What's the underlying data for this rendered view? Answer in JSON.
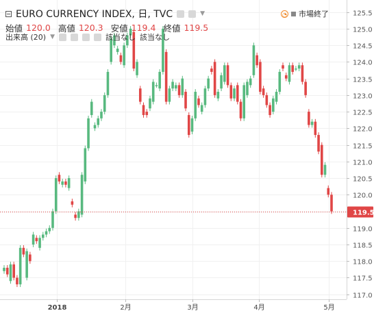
{
  "legend": {
    "symbol": "EURO CURRENCY INDEX, 日, TVC",
    "open_label": "始値",
    "open": "120.0",
    "high_label": "高値",
    "high": "120.3",
    "low_label": "安値",
    "low": "119.4",
    "close_label": "終値",
    "close": "119.5",
    "volume_label": "出来高 (20)",
    "na_1": "該当なし",
    "na_2": "該当なし"
  },
  "status": {
    "label": "市場終了"
  },
  "colors": {
    "up": "#58b97f",
    "down": "#e04646",
    "price_line": "#e04646",
    "grid": "#f0f0f0"
  },
  "chart_data": {
    "type": "candlestick",
    "y_ticks": [
      "125.5",
      "125.0",
      "124.5",
      "124.0",
      "123.5",
      "123.0",
      "122.5",
      "122.0",
      "121.5",
      "121.0",
      "120.5",
      "120.0",
      "119.5",
      "119.0",
      "118.5",
      "118.0",
      "117.5",
      "117.0"
    ],
    "x_ticks": [
      "2018",
      "2月",
      "3月",
      "4月",
      "5月"
    ],
    "ylim": [
      116.85,
      125.7
    ],
    "last_price": "119.5",
    "candles": [
      {
        "o": 117.7,
        "c": 117.8
      },
      {
        "o": 117.8,
        "c": 117.6
      },
      {
        "o": 117.4,
        "c": 117.9
      },
      {
        "o": 117.9,
        "c": 117.5
      },
      {
        "o": 117.5,
        "c": 117.3
      },
      {
        "o": 117.3,
        "c": 118.4
      },
      {
        "o": 118.4,
        "c": 118.2
      },
      {
        "o": 117.5,
        "c": 118.3
      },
      {
        "o": 118.2,
        "c": 118.0
      },
      {
        "o": 118.5,
        "c": 118.8
      },
      {
        "o": 118.7,
        "c": 118.6
      },
      {
        "o": 118.4,
        "c": 118.7
      },
      {
        "o": 118.7,
        "c": 118.8
      },
      {
        "o": 118.8,
        "c": 118.9
      },
      {
        "o": 118.9,
        "c": 119.0
      },
      {
        "o": 119.0,
        "c": 119.5
      },
      {
        "o": 119.5,
        "c": 120.5
      },
      {
        "o": 120.6,
        "c": 120.4
      },
      {
        "o": 120.3,
        "c": 120.4
      },
      {
        "o": 120.4,
        "c": 120.3
      },
      {
        "o": 120.2,
        "c": 120.5
      },
      {
        "o": 119.8,
        "c": 119.7
      },
      {
        "o": 119.4,
        "c": 119.3
      },
      {
        "o": 119.3,
        "c": 119.5
      },
      {
        "o": 119.4,
        "c": 120.6
      },
      {
        "o": 120.4,
        "c": 121.4
      },
      {
        "o": 121.4,
        "c": 122.3
      },
      {
        "o": 122.4,
        "c": 122.8
      },
      {
        "o": 122.0,
        "c": 122.1
      },
      {
        "o": 122.1,
        "c": 122.3
      },
      {
        "o": 122.3,
        "c": 122.5
      },
      {
        "o": 122.5,
        "c": 123.0
      },
      {
        "o": 123.0,
        "c": 123.7
      },
      {
        "o": 124.0,
        "c": 124.7
      },
      {
        "o": 124.5,
        "c": 124.8
      },
      {
        "o": 124.3,
        "c": 124.4
      },
      {
        "o": 124.2,
        "c": 124.0
      },
      {
        "o": 123.9,
        "c": 124.5
      },
      {
        "o": 124.5,
        "c": 124.8
      },
      {
        "o": 124.8,
        "c": 125.0
      },
      {
        "o": 124.9,
        "c": 123.8
      },
      {
        "o": 123.6,
        "c": 124.0
      },
      {
        "o": 123.2,
        "c": 122.8
      },
      {
        "o": 122.7,
        "c": 122.4
      },
      {
        "o": 122.5,
        "c": 122.4
      },
      {
        "o": 122.6,
        "c": 122.9
      },
      {
        "o": 122.8,
        "c": 123.4
      },
      {
        "o": 123.3,
        "c": 123.3
      },
      {
        "o": 123.2,
        "c": 123.7
      },
      {
        "o": 123.7,
        "c": 125.0
      },
      {
        "o": 124.3,
        "c": 122.8
      },
      {
        "o": 122.8,
        "c": 123.2
      },
      {
        "o": 123.2,
        "c": 123.4
      },
      {
        "o": 123.2,
        "c": 123.3
      },
      {
        "o": 123.3,
        "c": 123.0
      },
      {
        "o": 123.0,
        "c": 123.5
      },
      {
        "o": 123.1,
        "c": 122.6
      },
      {
        "o": 122.4,
        "c": 121.8
      },
      {
        "o": 121.9,
        "c": 122.3
      },
      {
        "o": 122.3,
        "c": 123.1
      },
      {
        "o": 122.9,
        "c": 122.7
      },
      {
        "o": 122.5,
        "c": 122.7
      },
      {
        "o": 122.7,
        "c": 123.2
      },
      {
        "o": 123.2,
        "c": 123.5
      },
      {
        "o": 123.8,
        "c": 123.7
      },
      {
        "o": 124.0,
        "c": 123.0
      },
      {
        "o": 122.9,
        "c": 123.1
      },
      {
        "o": 123.2,
        "c": 123.6
      },
      {
        "o": 123.4,
        "c": 123.9
      },
      {
        "o": 123.9,
        "c": 123.3
      },
      {
        "o": 123.3,
        "c": 122.9
      },
      {
        "o": 122.9,
        "c": 123.2
      },
      {
        "o": 123.3,
        "c": 122.8
      },
      {
        "o": 122.8,
        "c": 122.3
      },
      {
        "o": 122.3,
        "c": 123.3
      },
      {
        "o": 123.0,
        "c": 123.4
      },
      {
        "o": 123.3,
        "c": 123.5
      },
      {
        "o": 123.6,
        "c": 124.5
      },
      {
        "o": 124.2,
        "c": 123.9
      },
      {
        "o": 124.0,
        "c": 123.1
      },
      {
        "o": 123.2,
        "c": 123.0
      },
      {
        "o": 123.0,
        "c": 122.7
      },
      {
        "o": 122.7,
        "c": 122.4
      },
      {
        "o": 122.5,
        "c": 122.9
      },
      {
        "o": 122.8,
        "c": 123.1
      },
      {
        "o": 123.1,
        "c": 123.7
      },
      {
        "o": 123.9,
        "c": 123.8
      },
      {
        "o": 123.6,
        "c": 123.5
      },
      {
        "o": 123.4,
        "c": 123.9
      },
      {
        "o": 123.9,
        "c": 123.7
      },
      {
        "o": 123.8,
        "c": 123.8
      },
      {
        "o": 123.8,
        "c": 123.9
      },
      {
        "o": 123.9,
        "c": 123.4
      },
      {
        "o": 123.4,
        "c": 123.0
      },
      {
        "o": 122.5,
        "c": 122.1
      },
      {
        "o": 122.1,
        "c": 122.2
      },
      {
        "o": 122.2,
        "c": 121.8
      },
      {
        "o": 121.8,
        "c": 121.3
      },
      {
        "o": 121.5,
        "c": 120.6
      },
      {
        "o": 120.6,
        "c": 120.9
      },
      {
        "o": 120.2,
        "c": 120.0
      },
      {
        "o": 120.0,
        "c": 119.5
      }
    ]
  }
}
